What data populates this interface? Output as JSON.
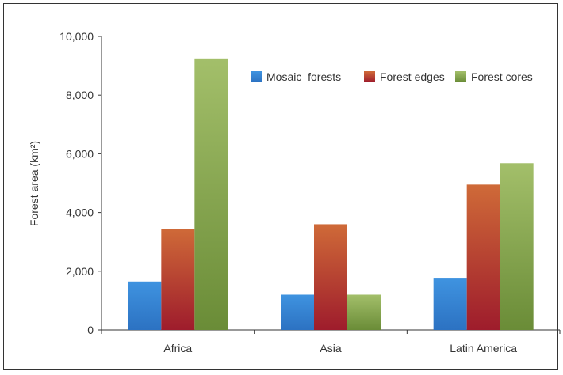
{
  "chart_data": {
    "type": "bar",
    "title": "",
    "xlabel": "",
    "ylabel": "Forest area (km²)",
    "ylim": [
      0,
      10000
    ],
    "yticks": [
      "0",
      "2,000",
      "4,000",
      "6,000",
      "8,000",
      "10,000"
    ],
    "ytick_values": [
      0,
      2000,
      4000,
      6000,
      8000,
      10000
    ],
    "categories": [
      "Africa",
      "Asia",
      "Latin America"
    ],
    "series": [
      {
        "name": "Mosaic  forests",
        "values": [
          1650,
          1200,
          1750
        ],
        "color": "#2f7fd0"
      },
      {
        "name": "Forest edges",
        "values": [
          3450,
          3600,
          4950
        ],
        "color": "#b5402e"
      },
      {
        "name": "Forest cores",
        "values": [
          9250,
          1200,
          5680
        ],
        "color": "#7ea043"
      }
    ],
    "grid": false,
    "legend_position": "top-right"
  }
}
